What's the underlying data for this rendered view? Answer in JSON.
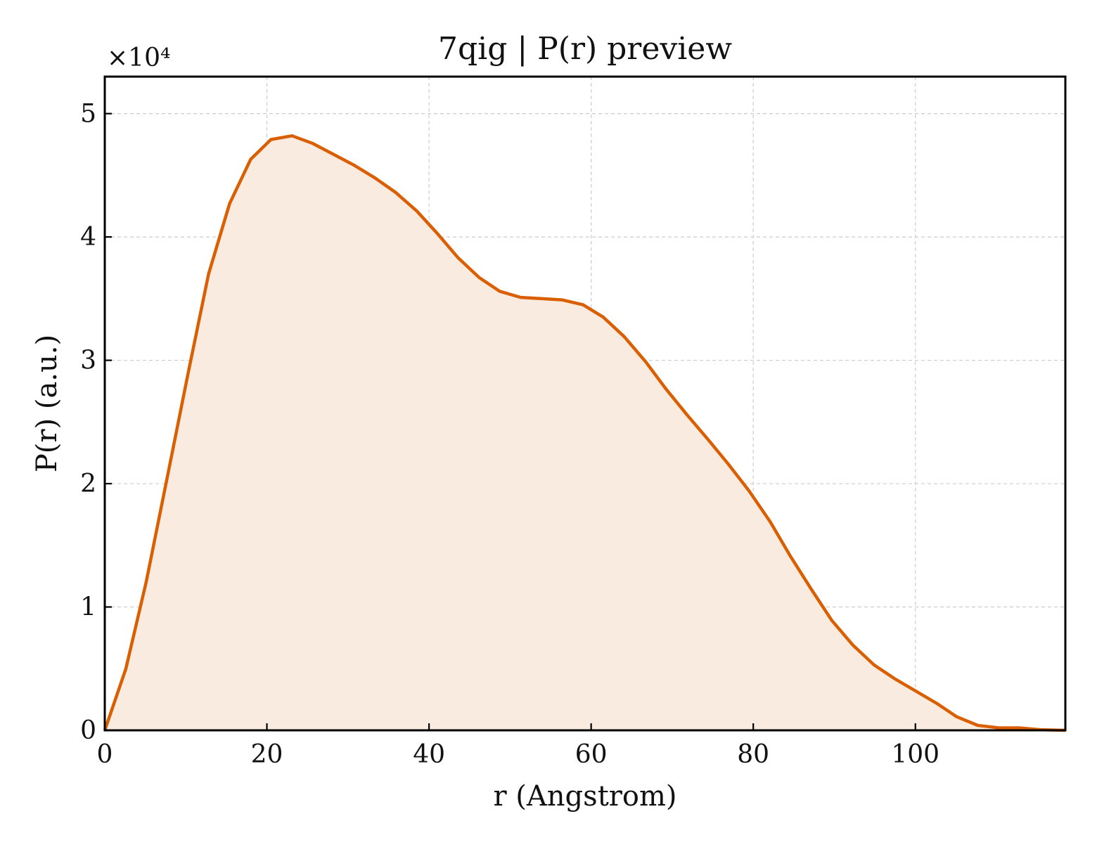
{
  "chart_data": {
    "type": "area",
    "title": "7qig | P(r) preview",
    "xlabel": "r (Angstrom)",
    "ylabel": "P(r) (a.u.)",
    "y_multiplier_label": "×10⁴",
    "y_scale_factor": 10000,
    "xlim": [
      0,
      118.5
    ],
    "ylim": [
      0,
      53000
    ],
    "x_ticks": [
      0,
      20,
      40,
      60,
      80,
      100
    ],
    "x_tick_labels": [
      "0",
      "20",
      "40",
      "60",
      "80",
      "100"
    ],
    "y_ticks": [
      0,
      10000,
      20000,
      30000,
      40000,
      50000
    ],
    "y_tick_labels": [
      "0",
      "1",
      "2",
      "3",
      "4",
      "5"
    ],
    "grid": true,
    "colors": {
      "line": "#d95f02",
      "fill": "#f9ebe0"
    },
    "series": [
      {
        "x": [
          0,
          2.6,
          5.1,
          7.7,
          10.3,
          12.8,
          15.4,
          18.0,
          20.5,
          23.1,
          25.6,
          28.2,
          30.8,
          33.3,
          35.9,
          38.5,
          41.0,
          43.6,
          46.2,
          48.7,
          51.3,
          53.8,
          56.4,
          59.0,
          61.5,
          64.1,
          66.7,
          69.2,
          71.8,
          74.4,
          76.9,
          79.5,
          82.1,
          84.6,
          87.2,
          89.7,
          92.3,
          94.9,
          97.4,
          100.0,
          102.6,
          105.1,
          107.7,
          110.3,
          112.8,
          115.4,
          118.5
        ],
        "y": [
          0,
          5000,
          12000,
          20500,
          29000,
          37000,
          42700,
          46300,
          47900,
          48200,
          47600,
          46700,
          45800,
          44800,
          43600,
          42100,
          40300,
          38300,
          36700,
          35600,
          35100,
          35000,
          34900,
          34500,
          33500,
          31900,
          29900,
          27700,
          25600,
          23600,
          21600,
          19400,
          16900,
          14100,
          11400,
          8900,
          6900,
          5300,
          4200,
          3200,
          2200,
          1100,
          400,
          200,
          200,
          50,
          0
        ]
      }
    ]
  }
}
